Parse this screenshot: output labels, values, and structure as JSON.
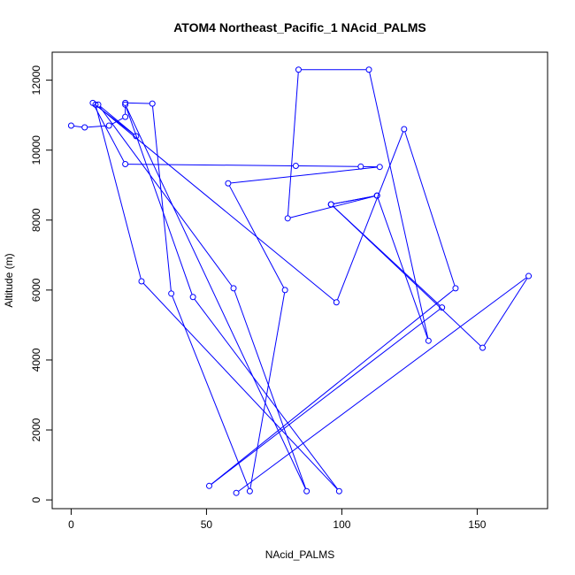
{
  "chart_data": {
    "type": "line",
    "title": "ATOM4 Northeast_Pacific_1 NAcid_PALMS",
    "xlabel": "NAcid_PALMS",
    "ylabel": "Altitude (m)",
    "xlim": [
      -7,
      176
    ],
    "ylim": [
      -250,
      12800
    ],
    "x_ticks": [
      0,
      50,
      100,
      150
    ],
    "y_ticks": [
      0,
      2000,
      4000,
      6000,
      8000,
      10000,
      12000
    ],
    "x_tick_labels": [
      "0",
      "50",
      "100",
      "150"
    ],
    "y_tick_labels": [
      "0",
      "2000",
      "4000",
      "6000",
      "8000",
      "10000",
      "12000"
    ],
    "grid": false,
    "legend": "none",
    "series_color": "#0000ff",
    "marker": "open-circle",
    "series": [
      {
        "x": [
          0,
          5,
          14,
          20,
          20,
          30,
          37,
          66,
          79,
          58,
          114,
          107,
          83,
          20,
          8,
          24,
          10,
          60,
          87,
          20,
          45,
          99,
          26,
          9,
          98,
          123,
          142,
          51,
          137,
          96,
          113,
          132,
          110,
          84,
          80,
          113,
          96,
          152,
          169,
          61
        ],
        "y": [
          10700,
          10650,
          10700,
          10950,
          11350,
          11330,
          5900,
          250,
          6000,
          9050,
          9520,
          9530,
          9550,
          9600,
          11350,
          10400,
          11300,
          6050,
          250,
          11300,
          5800,
          250,
          6250,
          11300,
          5650,
          10600,
          6050,
          400,
          5500,
          8450,
          8700,
          4550,
          12300,
          12300,
          8050,
          8700,
          8450,
          4350,
          6400,
          200
        ]
      }
    ]
  }
}
